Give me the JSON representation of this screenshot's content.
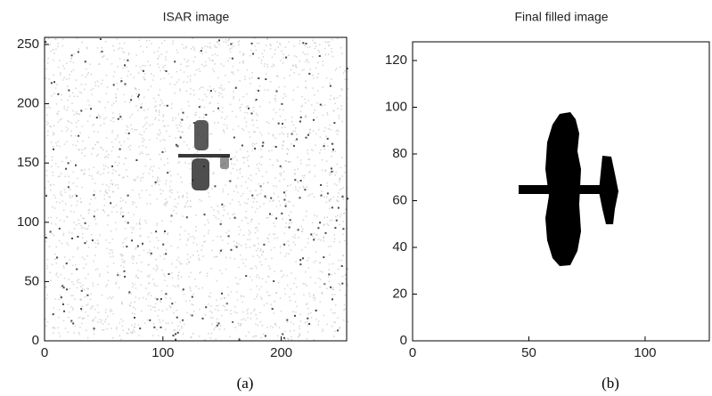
{
  "chart_data": [
    {
      "type": "image",
      "title": "ISAR image",
      "caption": "(a)",
      "xlim": [
        0,
        256
      ],
      "ylim": [
        0,
        256
      ],
      "xticks": [
        0,
        100,
        200
      ],
      "yticks": [
        0,
        50,
        100,
        150,
        200,
        250
      ]
    },
    {
      "type": "image",
      "title": "Final filled image",
      "caption": "(b)",
      "xlim": [
        0,
        128
      ],
      "ylim": [
        0,
        128
      ],
      "xticks": [
        0,
        50,
        100
      ],
      "yticks": [
        0,
        20,
        40,
        60,
        80,
        100,
        120
      ]
    }
  ]
}
